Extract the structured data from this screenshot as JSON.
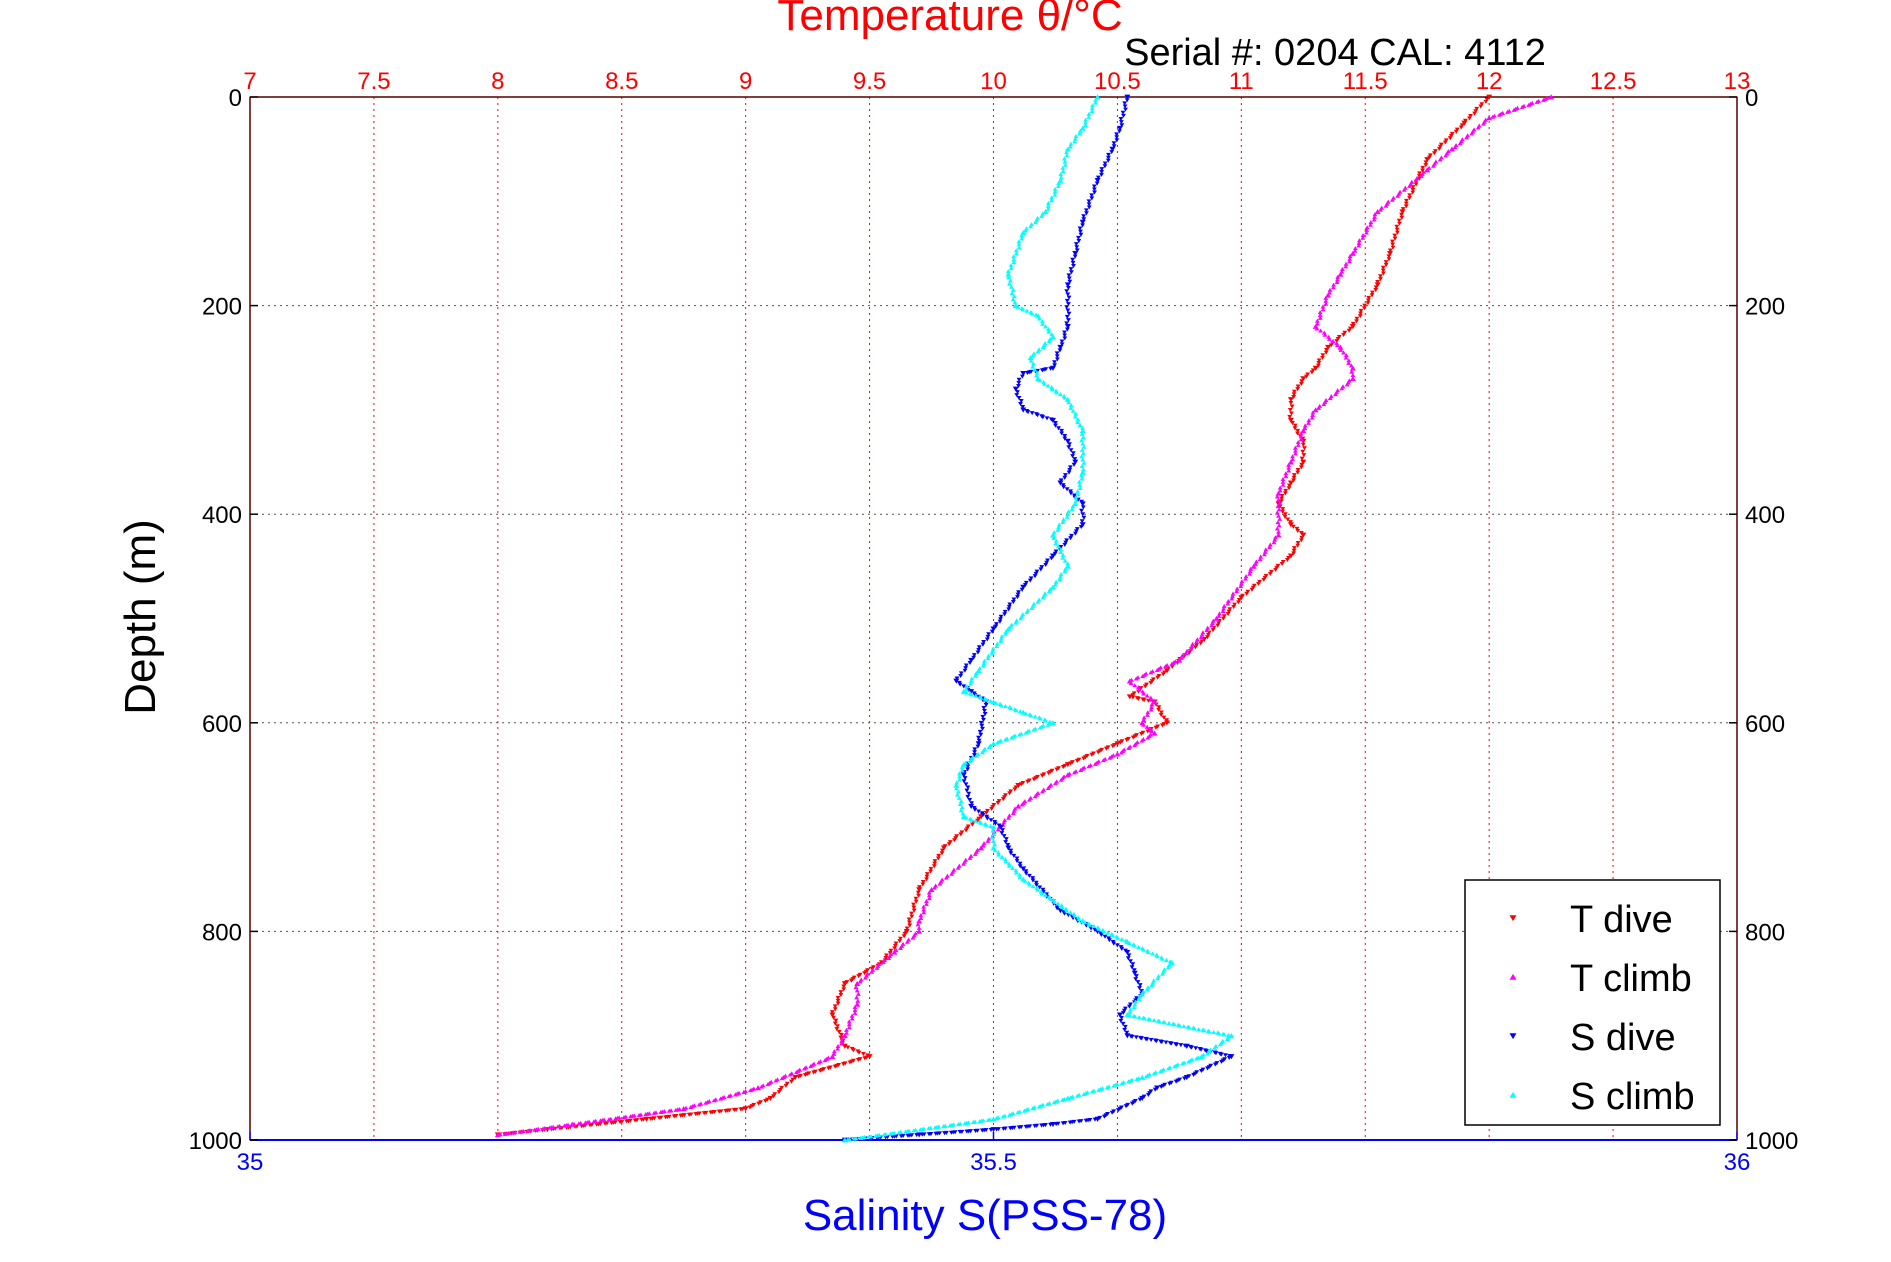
{
  "chart_data": {
    "type": "scatter",
    "title": "Temperature θ/°C",
    "subtitle": "Serial #: 0204  CAL: 4112",
    "ylabel": "Depth (m)",
    "xlabel_top": "Temperature θ/°C",
    "xlabel_bottom": "Salinity S(PSS-78)",
    "x_top": {
      "range": [
        7,
        13
      ],
      "ticks": [
        "7",
        "7.5",
        "8",
        "8.5",
        "9",
        "9.5",
        "10",
        "10.5",
        "11",
        "11.5",
        "12",
        "12.5",
        "13"
      ],
      "color": "#ff0000"
    },
    "x_bottom": {
      "range": [
        35,
        36
      ],
      "ticks": [
        "35",
        "35.5",
        "36"
      ],
      "color": "#0000ff"
    },
    "y": {
      "range": [
        0,
        1000
      ],
      "reversed": true,
      "ticks": [
        "0",
        "200",
        "400",
        "600",
        "800",
        "1000"
      ]
    },
    "grid": true,
    "legend_position": "bottom-right",
    "series": [
      {
        "name": "T dive",
        "axis": "top",
        "color": "#ff0000",
        "marker": "triangle-down",
        "x": [
          12.0,
          11.9,
          11.75,
          11.65,
          11.6,
          11.55,
          11.45,
          11.35,
          11.3,
          11.25,
          11.2,
          11.2,
          11.25,
          11.25,
          11.2,
          11.15,
          11.2,
          11.25,
          11.2,
          11.0,
          10.85,
          10.7,
          10.55,
          10.65,
          10.7,
          10.5,
          10.3,
          10.1,
          9.95,
          9.8,
          9.7,
          9.65,
          9.55,
          9.4,
          9.35,
          9.4,
          9.5,
          9.2,
          9.1,
          9.0,
          8.6,
          8.2,
          8.0
        ],
        "y": [
          0,
          25,
          60,
          110,
          150,
          180,
          220,
          240,
          260,
          270,
          290,
          310,
          330,
          350,
          370,
          390,
          410,
          420,
          440,
          480,
          520,
          550,
          575,
          580,
          600,
          620,
          640,
          660,
          690,
          720,
          760,
          800,
          830,
          850,
          880,
          910,
          920,
          940,
          960,
          970,
          980,
          990,
          995
        ]
      },
      {
        "name": "T climb",
        "axis": "top",
        "color": "#ff00ff",
        "marker": "triangle-up",
        "x": [
          12.25,
          12.0,
          11.85,
          11.75,
          11.55,
          11.45,
          11.4,
          11.35,
          11.3,
          11.4,
          11.45,
          11.45,
          11.3,
          11.25,
          11.2,
          11.15,
          11.15,
          11.05,
          10.9,
          10.75,
          10.55,
          10.65,
          10.6,
          10.65,
          10.5,
          10.3,
          10.1,
          9.95,
          9.75,
          9.7,
          9.7,
          9.6,
          9.45,
          9.45,
          9.4,
          9.35,
          9.05,
          8.75,
          8.3,
          8.0
        ],
        "y": [
          0,
          20,
          50,
          70,
          110,
          150,
          170,
          190,
          220,
          240,
          260,
          270,
          300,
          320,
          350,
          380,
          420,
          450,
          500,
          540,
          560,
          580,
          600,
          610,
          630,
          650,
          680,
          720,
          760,
          790,
          800,
          820,
          850,
          870,
          900,
          920,
          950,
          970,
          985,
          995
        ]
      },
      {
        "name": "S dive",
        "axis": "bottom",
        "color": "#0000ff",
        "marker": "triangle-down",
        "x": [
          35.59,
          35.585,
          35.58,
          35.57,
          35.56,
          35.555,
          35.55,
          35.55,
          35.545,
          35.54,
          35.52,
          35.515,
          35.52,
          35.54,
          35.55,
          35.555,
          35.545,
          35.56,
          35.56,
          35.54,
          35.52,
          35.5,
          35.485,
          35.475,
          35.485,
          35.495,
          35.49,
          35.48,
          35.485,
          35.505,
          35.51,
          35.52,
          35.545,
          35.57,
          35.59,
          35.595,
          35.6,
          35.585,
          35.59,
          35.63,
          35.66,
          35.63,
          35.61,
          35.6,
          35.57,
          35.54,
          35.5,
          35.45,
          35.4
        ],
        "y": [
          0,
          30,
          50,
          80,
          120,
          150,
          180,
          220,
          240,
          260,
          265,
          280,
          300,
          310,
          330,
          350,
          370,
          390,
          410,
          440,
          470,
          510,
          540,
          560,
          570,
          580,
          620,
          650,
          680,
          700,
          720,
          740,
          780,
          800,
          820,
          840,
          860,
          880,
          900,
          910,
          920,
          940,
          950,
          960,
          980,
          985,
          990,
          995,
          1000
        ]
      },
      {
        "name": "S climb",
        "axis": "bottom",
        "color": "#00ffff",
        "marker": "triangle-up",
        "x": [
          35.57,
          35.56,
          35.55,
          35.545,
          35.535,
          35.52,
          35.51,
          35.515,
          35.53,
          35.54,
          35.525,
          35.53,
          35.55,
          35.56,
          35.56,
          35.555,
          35.54,
          35.55,
          35.54,
          35.51,
          35.49,
          35.48,
          35.5,
          35.52,
          35.54,
          35.5,
          35.48,
          35.475,
          35.48,
          35.5,
          35.5,
          35.52,
          35.56,
          35.59,
          35.62,
          35.6,
          35.59,
          35.66,
          35.64,
          35.6,
          35.55,
          35.5,
          35.4
        ],
        "y": [
          0,
          30,
          50,
          80,
          110,
          130,
          170,
          200,
          210,
          230,
          250,
          270,
          290,
          320,
          360,
          390,
          420,
          450,
          470,
          510,
          550,
          570,
          580,
          590,
          600,
          620,
          640,
          660,
          690,
          700,
          720,
          750,
          790,
          810,
          830,
          860,
          880,
          900,
          920,
          940,
          960,
          980,
          1000
        ]
      }
    ]
  }
}
